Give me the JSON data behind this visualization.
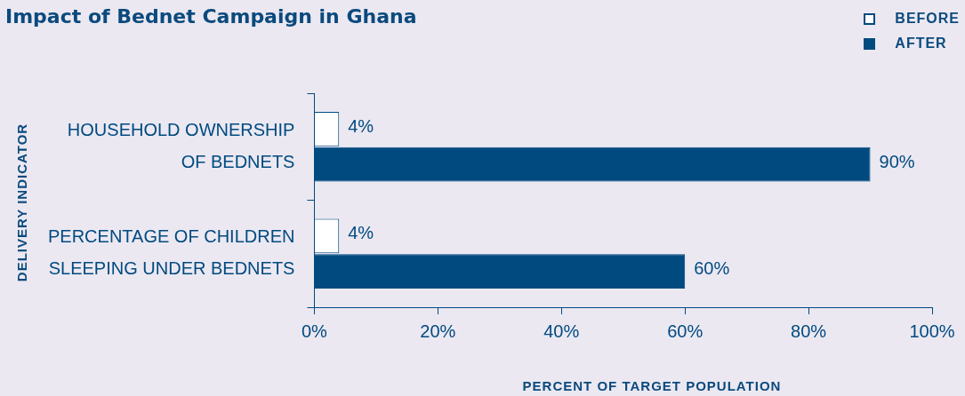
{
  "chart_data": {
    "type": "bar",
    "orientation": "horizontal",
    "title": "Impact of Bednet Campaign in Ghana",
    "xlabel": "PERCENT OF TARGET POPULATION",
    "ylabel": "DELIVERY INDICATOR",
    "categories": [
      "HOUSEHOLD OWNERSHIP OF BEDNETS",
      "PERCENTAGE OF CHILDREN SLEEPING UNDER BEDNETS"
    ],
    "series": [
      {
        "name": "BEFORE",
        "color": "#ffffff",
        "values": [
          4,
          4
        ],
        "value_labels": [
          "4%",
          "4%"
        ]
      },
      {
        "name": "AFTER",
        "color": "#004a80",
        "values": [
          90,
          60
        ],
        "value_labels": [
          "90%",
          "60%"
        ]
      }
    ],
    "xlim": [
      0,
      100
    ],
    "xticks": [
      {
        "value": 0,
        "label": "0%"
      },
      {
        "value": 20,
        "label": "20%"
      },
      {
        "value": 40,
        "label": "40%"
      },
      {
        "value": 60,
        "label": "60%"
      },
      {
        "value": 80,
        "label": "80%"
      },
      {
        "value": 100,
        "label": "100%"
      }
    ],
    "grid": false,
    "legend": "top right"
  }
}
